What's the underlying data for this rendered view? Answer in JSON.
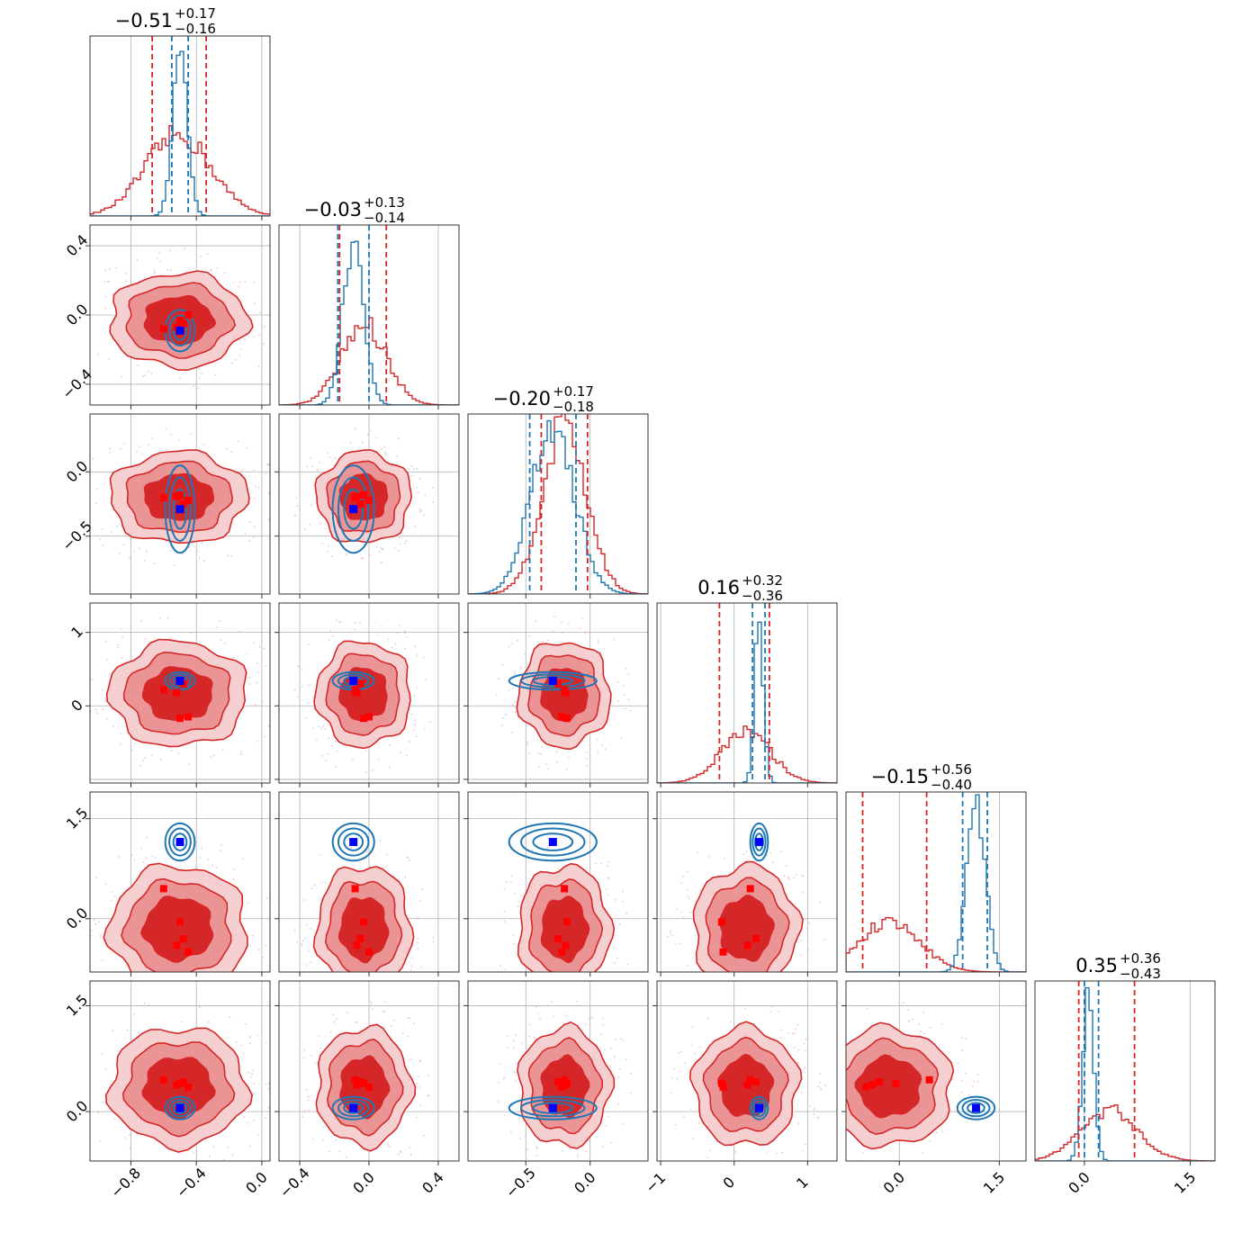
{
  "chart_data": {
    "type": "corner",
    "n_params": 6,
    "colors": {
      "reference": "#d62728",
      "reference_light": "#f0a0a0",
      "posterior": "#1f77b4",
      "truth": "#0000ff",
      "point": "#ff0000"
    },
    "parameters": [
      {
        "title_main": "−0.51",
        "title_sup": "+0.17",
        "title_sub": "−0.16",
        "range": [
          -1.05,
          0.05
        ],
        "ticks": [
          {
            "v": -0.8,
            "label": "−0.8"
          },
          {
            "v": -0.4,
            "label": "−0.4"
          },
          {
            "v": 0.0,
            "label": "0.0"
          }
        ],
        "hist_ref": {
          "mu": -0.51,
          "sd": 0.2
        },
        "hist_post": {
          "mu": -0.5,
          "sd": 0.045
        },
        "q_ref": [
          -0.67,
          -0.34
        ],
        "q_post": [
          -0.55,
          -0.45
        ],
        "truth": -0.5,
        "points": [
          -0.6,
          -0.5,
          -0.45,
          -0.48,
          -0.52
        ]
      },
      {
        "title_main": "−0.03",
        "title_sup": "+0.13",
        "title_sub": "−0.14",
        "range": [
          -0.52,
          0.52
        ],
        "ticks": [
          {
            "v": -0.4,
            "label": "−0.4"
          },
          {
            "v": 0.0,
            "label": "0.0"
          },
          {
            "v": 0.4,
            "label": "0.4"
          }
        ],
        "hist_ref": {
          "mu": -0.03,
          "sd": 0.13
        },
        "hist_post": {
          "mu": -0.09,
          "sd": 0.06
        },
        "q_ref": [
          -0.17,
          0.1
        ],
        "q_post": [
          -0.18,
          0.0
        ],
        "truth": -0.09,
        "points": [
          -0.08,
          -0.03,
          0.0,
          -0.05,
          -0.07
        ]
      },
      {
        "title_main": "−0.20",
        "title_sup": "+0.17",
        "title_sub": "−0.18",
        "range": [
          -0.95,
          0.45
        ],
        "ticks": [
          {
            "v": -0.5,
            "label": "−0.5"
          },
          {
            "v": 0.0,
            "label": "0.0"
          }
        ],
        "hist_ref": {
          "mu": -0.2,
          "sd": 0.17
        },
        "hist_post": {
          "mu": -0.29,
          "sd": 0.17
        },
        "q_ref": [
          -0.38,
          -0.02
        ],
        "q_post": [
          -0.47,
          -0.11
        ],
        "truth": -0.29,
        "points": [
          -0.2,
          -0.18,
          -0.22,
          -0.25,
          -0.19
        ]
      },
      {
        "title_main": "0.16",
        "title_sup": "+0.32",
        "title_sub": "−0.36",
        "range": [
          -1.05,
          1.4
        ],
        "ticks": [
          {
            "v": -1,
            "label": "−1"
          },
          {
            "v": 0,
            "label": "0"
          },
          {
            "v": 1,
            "label": "1"
          }
        ],
        "hist_ref": {
          "mu": 0.16,
          "sd": 0.34
        },
        "hist_post": {
          "mu": 0.34,
          "sd": 0.06
        },
        "q_ref": [
          -0.2,
          0.48
        ],
        "q_post": [
          0.25,
          0.42
        ],
        "truth": 0.34,
        "points": [
          0.22,
          -0.17,
          -0.15,
          0.3,
          0.18
        ]
      },
      {
        "title_main": "−0.15",
        "title_sup": "+0.56",
        "title_sub": "−0.40",
        "range": [
          -0.8,
          1.9
        ],
        "ticks": [
          {
            "v": 0.0,
            "label": "0.0"
          },
          {
            "v": 1.5,
            "label": "1.5"
          }
        ],
        "hist_ref": {
          "mu": -0.15,
          "sd": 0.45
        },
        "hist_post": {
          "mu": 1.15,
          "sd": 0.14
        },
        "q_ref": [
          -0.55,
          0.41
        ],
        "q_post": [
          0.95,
          1.32
        ],
        "truth": 1.15,
        "points": [
          0.45,
          -0.05,
          -0.5,
          -0.3,
          -0.4
        ]
      },
      {
        "title_main": "0.35",
        "title_sup": "+0.36",
        "title_sub": "−0.43",
        "range": [
          -0.7,
          1.85
        ],
        "ticks": [
          {
            "v": 0.0,
            "label": "0.0"
          },
          {
            "v": 1.5,
            "label": "1.5"
          }
        ],
        "hist_ref": {
          "mu": 0.35,
          "sd": 0.4
        },
        "hist_post": {
          "mu": 0.05,
          "sd": 0.08
        },
        "q_ref": [
          -0.08,
          0.71
        ],
        "q_post": [
          0.0,
          0.2
        ],
        "truth": 0.05,
        "points": [
          0.45,
          0.4,
          0.35,
          0.42,
          0.38
        ]
      }
    ]
  }
}
